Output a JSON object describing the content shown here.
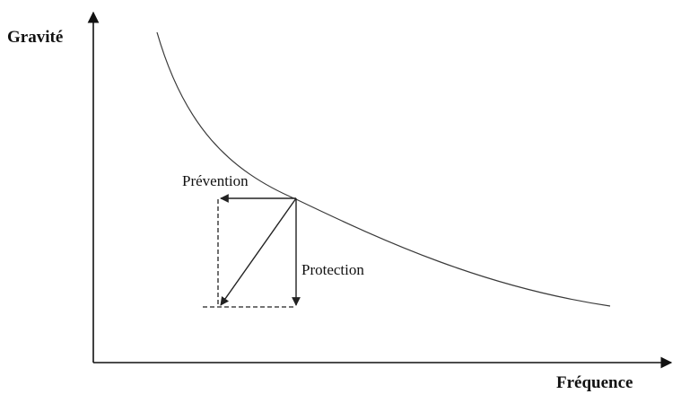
{
  "diagram": {
    "y_axis_label": "Gravité",
    "x_axis_label": "Fréquence",
    "prevention_label": "Prévention",
    "protection_label": "Protection"
  },
  "colors": {
    "line": "#3a3a3a",
    "axis": "#111111"
  }
}
